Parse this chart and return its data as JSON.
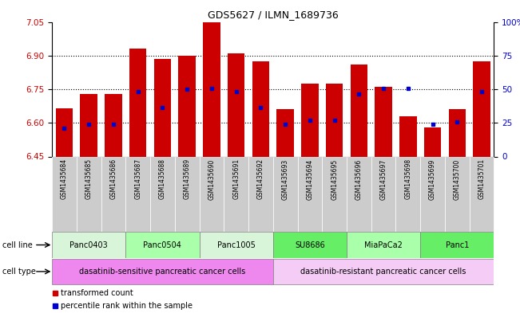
{
  "title": "GDS5627 / ILMN_1689736",
  "samples": [
    "GSM1435684",
    "GSM1435685",
    "GSM1435686",
    "GSM1435687",
    "GSM1435688",
    "GSM1435689",
    "GSM1435690",
    "GSM1435691",
    "GSM1435692",
    "GSM1435693",
    "GSM1435694",
    "GSM1435695",
    "GSM1435696",
    "GSM1435697",
    "GSM1435698",
    "GSM1435699",
    "GSM1435700",
    "GSM1435701"
  ],
  "bar_values": [
    6.665,
    6.73,
    6.73,
    6.93,
    6.885,
    6.9,
    7.05,
    6.91,
    6.875,
    6.66,
    6.775,
    6.775,
    6.86,
    6.76,
    6.63,
    6.58,
    6.66,
    6.875
  ],
  "percentile_values": [
    6.575,
    6.595,
    6.595,
    6.74,
    6.67,
    6.75,
    6.755,
    6.74,
    6.67,
    6.595,
    6.61,
    6.61,
    6.73,
    6.755,
    6.755,
    6.595,
    6.605,
    6.74
  ],
  "ylim_left": [
    6.45,
    7.05
  ],
  "ylim_right": [
    0,
    100
  ],
  "yticks_left": [
    6.45,
    6.6,
    6.75,
    6.9,
    7.05
  ],
  "yticks_right": [
    0,
    25,
    50,
    75,
    100
  ],
  "bar_color": "#cc0000",
  "percentile_color": "#0000cc",
  "bar_bottom": 6.45,
  "cell_lines": [
    {
      "label": "Panc0403",
      "start": 0,
      "end": 2,
      "color": "#d9f5d9"
    },
    {
      "label": "Panc0504",
      "start": 3,
      "end": 5,
      "color": "#aaffaa"
    },
    {
      "label": "Panc1005",
      "start": 6,
      "end": 8,
      "color": "#d9f5d9"
    },
    {
      "label": "SU8686",
      "start": 9,
      "end": 11,
      "color": "#66ee66"
    },
    {
      "label": "MiaPaCa2",
      "start": 12,
      "end": 14,
      "color": "#aaffaa"
    },
    {
      "label": "Panc1",
      "start": 15,
      "end": 17,
      "color": "#66ee66"
    }
  ],
  "cell_types": [
    {
      "label": "dasatinib-sensitive pancreatic cancer cells",
      "start": 0,
      "end": 8,
      "color": "#ee88ee"
    },
    {
      "label": "dasatinib-resistant pancreatic cancer cells",
      "start": 9,
      "end": 17,
      "color": "#f5ccf5"
    }
  ],
  "bg_color": "#ffffff",
  "left_yaxis_color": "#cc0000",
  "right_yaxis_color": "#0000cc",
  "sample_bg_color": "#cccccc",
  "grid_yticks": [
    6.6,
    6.75,
    6.9
  ]
}
